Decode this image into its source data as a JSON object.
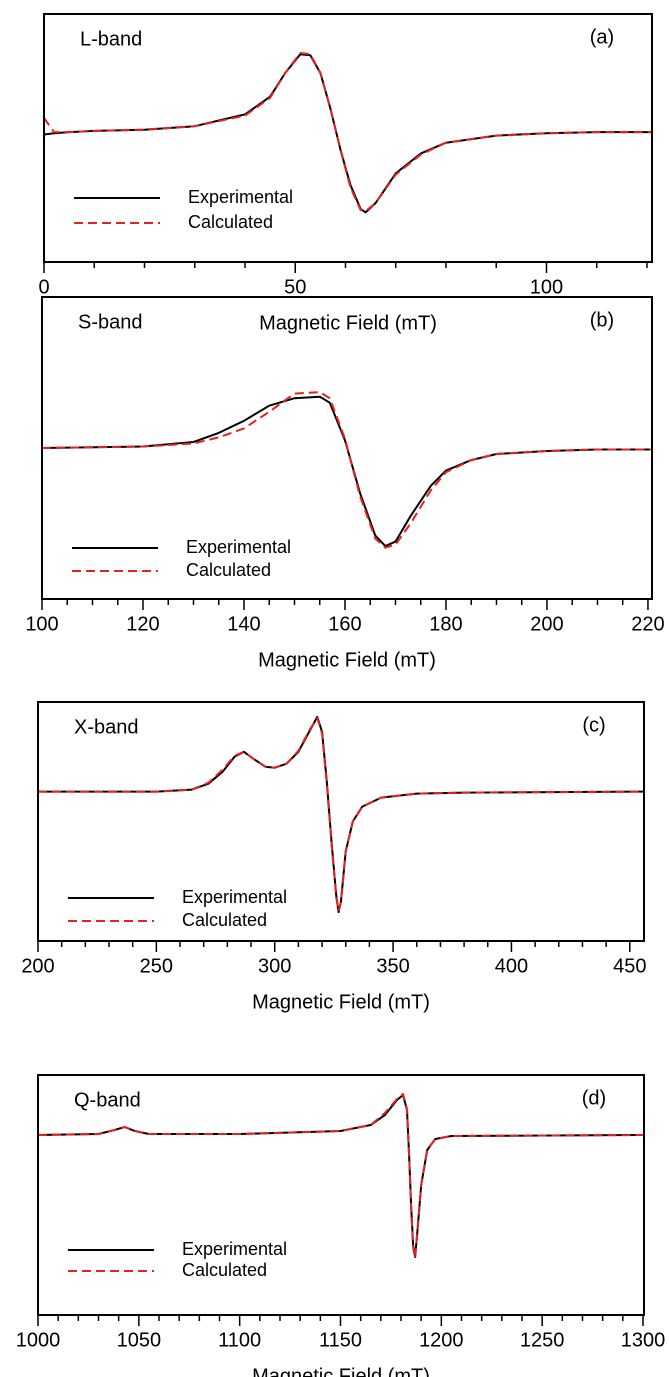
{
  "chart_data": [
    {
      "type": "line",
      "title": "L-band",
      "panel_label": "(a)",
      "xlabel": "Magnetic Field (mT)",
      "xlim": [
        0,
        121
      ],
      "xticks": [
        0,
        50,
        100
      ],
      "xminorticks": [
        10,
        20,
        30,
        40,
        60,
        70,
        80,
        90,
        110,
        120
      ],
      "ylim": [
        -1.1,
        1
      ],
      "x": [
        0,
        2,
        5,
        10,
        20,
        30,
        40,
        45,
        48,
        51,
        53,
        55,
        57,
        59,
        61,
        63,
        64,
        66,
        70,
        75,
        80,
        90,
        100,
        110,
        121
      ],
      "series": [
        {
          "name": "Experimental",
          "color": "#000000",
          "linestyle": "solid",
          "values": [
            -0.02,
            -0.01,
            0,
            0.01,
            0.02,
            0.05,
            0.15,
            0.3,
            0.5,
            0.66,
            0.65,
            0.5,
            0.2,
            -0.15,
            -0.45,
            -0.65,
            -0.68,
            -0.6,
            -0.35,
            -0.18,
            -0.09,
            -0.03,
            -0.01,
            0,
            0
          ]
        },
        {
          "name": "Calculated",
          "color": "#e8201e",
          "linestyle": "dashed",
          "values": [
            0.12,
            0,
            0,
            0.01,
            0.02,
            0.05,
            0.14,
            0.29,
            0.5,
            0.67,
            0.66,
            0.5,
            0.2,
            -0.15,
            -0.47,
            -0.66,
            -0.67,
            -0.6,
            -0.36,
            -0.19,
            -0.09,
            -0.03,
            -0.01,
            0,
            0
          ]
        }
      ]
    },
    {
      "type": "line",
      "title": "S-band",
      "panel_label": "(b)",
      "xlabel": "Magnetic Field (mT)",
      "xlim": [
        100,
        220.8
      ],
      "xticks": [
        100,
        120,
        140,
        160,
        180,
        200,
        220
      ],
      "xminorticks": [
        105,
        110,
        115,
        125,
        130,
        135,
        145,
        150,
        155,
        165,
        170,
        175,
        185,
        190,
        195,
        205,
        210,
        215
      ],
      "ylim": [
        -1,
        1
      ],
      "x": [
        100,
        120,
        130,
        135,
        140,
        145,
        150,
        155,
        157,
        160,
        163,
        166,
        168,
        170,
        173,
        177,
        180,
        185,
        190,
        200,
        210,
        220.8
      ],
      "series": [
        {
          "name": "Experimental",
          "color": "#000000",
          "linestyle": "solid",
          "values": [
            0,
            0.01,
            0.04,
            0.1,
            0.18,
            0.28,
            0.33,
            0.34,
            0.3,
            0.05,
            -0.3,
            -0.58,
            -0.65,
            -0.62,
            -0.45,
            -0.25,
            -0.15,
            -0.08,
            -0.04,
            -0.02,
            -0.01,
            -0.01
          ]
        },
        {
          "name": "Calculated",
          "color": "#e8201e",
          "linestyle": "dashed",
          "values": [
            0,
            0.01,
            0.03,
            0.07,
            0.13,
            0.24,
            0.36,
            0.37,
            0.33,
            0.06,
            -0.32,
            -0.6,
            -0.66,
            -0.64,
            -0.5,
            -0.28,
            -0.16,
            -0.08,
            -0.04,
            -0.02,
            -0.01,
            -0.01
          ]
        }
      ]
    },
    {
      "type": "line",
      "title": "X-band",
      "panel_label": "(c)",
      "xlabel": "Magnetic Field (mT)",
      "xlim": [
        200,
        456
      ],
      "xticks": [
        200,
        250,
        300,
        350,
        400,
        450
      ],
      "xminorticks": [
        210,
        220,
        230,
        240,
        260,
        270,
        280,
        290,
        310,
        320,
        330,
        340,
        360,
        370,
        380,
        390,
        410,
        420,
        430,
        440
      ],
      "ylim": [
        -1.5,
        0.9
      ],
      "x": [
        200,
        250,
        265,
        272,
        278,
        283,
        287,
        291,
        296,
        300,
        305,
        310,
        315,
        318,
        320,
        322,
        324,
        326,
        327,
        328,
        330,
        333,
        337,
        345,
        360,
        380,
        456
      ],
      "series": [
        {
          "name": "Experimental",
          "color": "#000000",
          "linestyle": "solid",
          "values": [
            0,
            0,
            0.02,
            0.08,
            0.2,
            0.35,
            0.4,
            0.33,
            0.25,
            0.24,
            0.28,
            0.4,
            0.62,
            0.75,
            0.6,
            0.1,
            -0.5,
            -1.05,
            -1.21,
            -1.1,
            -0.6,
            -0.3,
            -0.15,
            -0.06,
            -0.02,
            -0.01,
            0
          ]
        },
        {
          "name": "Calculated",
          "color": "#e8201e",
          "linestyle": "dashed",
          "values": [
            0,
            0,
            0.02,
            0.09,
            0.22,
            0.36,
            0.4,
            0.33,
            0.25,
            0.24,
            0.28,
            0.41,
            0.63,
            0.74,
            0.58,
            0.08,
            -0.52,
            -1.06,
            -1.2,
            -1.1,
            -0.6,
            -0.3,
            -0.15,
            -0.06,
            -0.02,
            -0.01,
            0
          ]
        }
      ]
    },
    {
      "type": "line",
      "title": "Q-band",
      "panel_label": "(d)",
      "xlabel": "Magnetic Field (mT)",
      "xlim": [
        1000,
        1300.5
      ],
      "xticks": [
        1000,
        1050,
        1100,
        1150,
        1200,
        1250,
        1300
      ],
      "xminorticks": [
        1010,
        1020,
        1030,
        1040,
        1060,
        1070,
        1080,
        1090,
        1110,
        1120,
        1130,
        1140,
        1160,
        1170,
        1180,
        1190,
        1210,
        1220,
        1230,
        1240,
        1260,
        1270,
        1280,
        1290
      ],
      "ylim": [
        -1.8,
        0.6
      ],
      "x": [
        1000,
        1030,
        1038,
        1043,
        1048,
        1055,
        1100,
        1150,
        1165,
        1172,
        1178,
        1181,
        1183,
        1184,
        1185,
        1186,
        1187,
        1188,
        1190,
        1193,
        1197,
        1205,
        1300
      ],
      "series": [
        {
          "name": "Experimental",
          "color": "#000000",
          "linestyle": "solid",
          "values": [
            0,
            0.01,
            0.05,
            0.08,
            0.04,
            0.01,
            0.01,
            0.04,
            0.1,
            0.2,
            0.35,
            0.4,
            0.25,
            -0.2,
            -0.7,
            -1.1,
            -1.22,
            -1.0,
            -0.5,
            -0.15,
            -0.04,
            -0.01,
            0
          ]
        },
        {
          "name": "Calculated",
          "color": "#e8201e",
          "linestyle": "dashed",
          "values": [
            0,
            0.01,
            0.05,
            0.08,
            0.04,
            0.01,
            0.01,
            0.04,
            0.1,
            0.22,
            0.36,
            0.41,
            0.26,
            -0.2,
            -0.72,
            -1.12,
            -1.23,
            -1.0,
            -0.5,
            -0.15,
            -0.04,
            -0.01,
            0
          ]
        }
      ]
    }
  ]
}
